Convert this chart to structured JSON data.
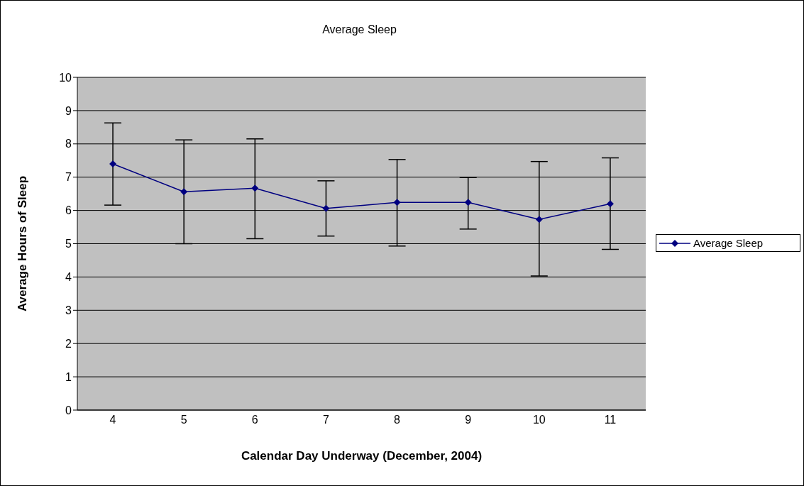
{
  "chart_data": {
    "type": "line",
    "title": "Average Sleep",
    "xlabel": "Calendar Day Underway (December, 2004)",
    "ylabel": "Average Hours of Sleep",
    "categories": [
      "4",
      "5",
      "6",
      "7",
      "8",
      "9",
      "10",
      "11"
    ],
    "series": [
      {
        "name": "Average Sleep",
        "color": "#000080",
        "values": [
          7.4,
          6.56,
          6.67,
          6.06,
          6.24,
          6.24,
          5.73,
          6.2
        ],
        "errors": [
          [
            6.16,
            8.63
          ],
          [
            5.0,
            8.12
          ],
          [
            5.15,
            8.15
          ],
          [
            5.23,
            6.89
          ],
          [
            4.93,
            7.53
          ],
          [
            5.44,
            6.99
          ],
          [
            4.03,
            7.47
          ],
          [
            4.83,
            7.58
          ]
        ]
      }
    ],
    "ylim": [
      0,
      10
    ],
    "yticks": [
      0,
      1,
      2,
      3,
      4,
      5,
      6,
      7,
      8,
      9,
      10
    ],
    "grid": "y",
    "legend": "right",
    "marker": "diamond",
    "line_style": "solid"
  }
}
